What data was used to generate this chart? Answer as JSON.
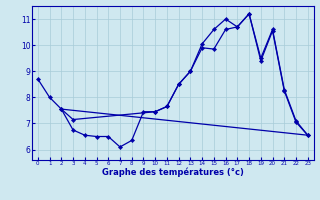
{
  "background_color": "#cfe8f0",
  "grid_color": "#a8ccd8",
  "line_color": "#0000aa",
  "xlabel": "Graphe des températures (°c)",
  "xlim": [
    -0.5,
    23.5
  ],
  "ylim": [
    5.6,
    11.5
  ],
  "yticks": [
    6,
    7,
    8,
    9,
    10,
    11
  ],
  "xticks": [
    0,
    1,
    2,
    3,
    4,
    5,
    6,
    7,
    8,
    9,
    10,
    11,
    12,
    13,
    14,
    15,
    16,
    17,
    18,
    19,
    20,
    21,
    22,
    23
  ],
  "curve1_x": [
    0,
    1,
    2,
    3,
    10,
    11,
    12,
    13,
    14,
    15,
    16,
    17,
    18,
    19,
    20,
    21,
    22,
    23
  ],
  "curve1_y": [
    8.7,
    8.0,
    7.55,
    7.15,
    7.45,
    7.65,
    8.5,
    9.0,
    10.05,
    10.6,
    11.0,
    10.7,
    11.2,
    9.5,
    10.6,
    8.3,
    7.1,
    6.55
  ],
  "curve2_x": [
    2,
    3,
    4,
    5,
    6,
    7,
    8,
    9,
    10,
    11,
    12,
    13,
    14,
    15,
    16,
    17,
    18,
    19,
    20,
    21,
    22,
    23
  ],
  "curve2_y": [
    7.55,
    6.75,
    6.55,
    6.5,
    6.5,
    6.1,
    6.35,
    7.45,
    7.45,
    7.65,
    8.5,
    9.0,
    9.9,
    9.85,
    10.6,
    10.7,
    11.2,
    9.4,
    10.55,
    8.25,
    7.05,
    6.55
  ],
  "curve3_x": [
    2,
    23
  ],
  "curve3_y": [
    7.55,
    6.55
  ]
}
